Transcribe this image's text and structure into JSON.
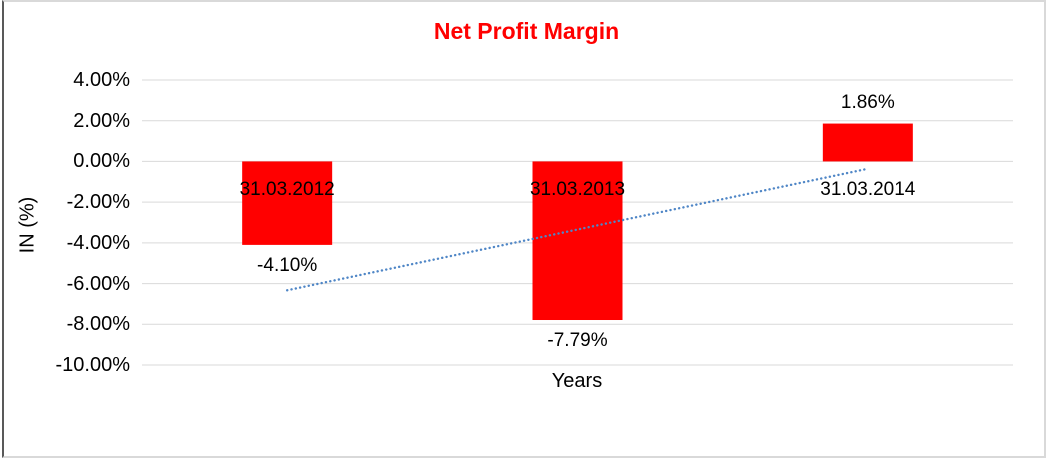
{
  "window": {
    "background": "#FFFFFF",
    "border_color": "#D9D9D9",
    "left_edge_color": "#595959"
  },
  "chart_data": {
    "type": "bar",
    "title": "Net Profit Margin",
    "title_color": "#FF0000",
    "xlabel": "Years",
    "ylabel": "IN (%)",
    "categories": [
      "31.03.2012",
      "31.03.2013",
      "31.03.2014"
    ],
    "values": [
      -4.1,
      -7.79,
      1.86
    ],
    "data_labels": [
      "-4.10%",
      "-7.79%",
      "1.86%"
    ],
    "bar_color": "#FF0000",
    "text_color": "#000000",
    "ylim": [
      -10,
      4
    ],
    "ytick_values": [
      4,
      2,
      0,
      -2,
      -4,
      -6,
      -8,
      -10
    ],
    "ytick_labels": [
      "4.00%",
      "2.00%",
      "0.00%",
      "-2.00%",
      "-4.00%",
      "-6.00%",
      "-8.00%",
      "-10.00%"
    ],
    "grid": true,
    "gridline_color": "#D9D9D9",
    "legend": "none",
    "trendline": {
      "type": "linear",
      "style": "dotted",
      "color": "#4F86C6",
      "start_value": -6.33,
      "end_value": -0.36,
      "spans": [
        "31.03.2012",
        "31.03.2014"
      ]
    }
  }
}
